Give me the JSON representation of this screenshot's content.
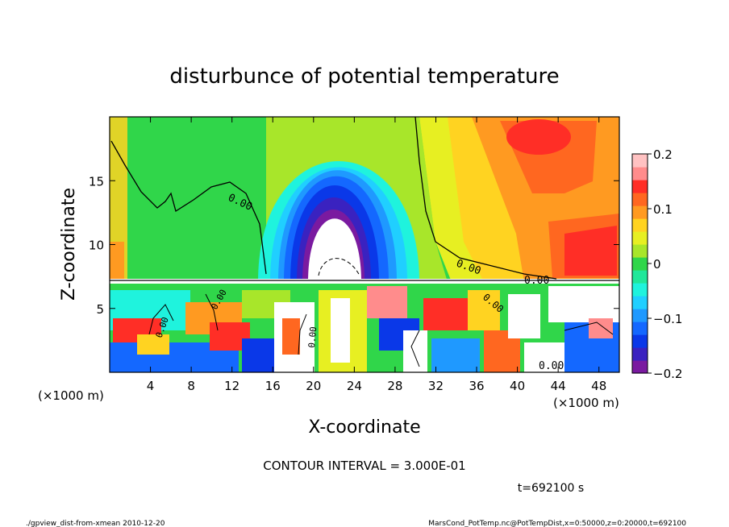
{
  "chart_data": {
    "type": "heatmap",
    "title": "disturbunce of potential temperature",
    "xlabel": "X-coordinate",
    "ylabel": "Z-coordinate",
    "x_unit": "(×1000 m)",
    "y_unit": "(×1000 m)",
    "xlim": [
      0,
      50
    ],
    "ylim": [
      0,
      20
    ],
    "x_ticks": [
      4,
      8,
      12,
      16,
      20,
      24,
      28,
      32,
      36,
      40,
      44,
      48
    ],
    "y_ticks": [
      5,
      10,
      15
    ],
    "colorbar": {
      "range": [
        -0.2,
        0.2
      ],
      "tick_values": [
        0.2,
        0.1,
        0,
        -0.1,
        -0.2
      ],
      "tick_labels": [
        "0.2",
        "0.1",
        "0",
        "−0.1",
        "−0.2"
      ]
    },
    "contour_interval_text": "CONTOUR INTERVAL = 3.000E-01",
    "contour_labels": [
      "0.00",
      "0.00",
      "0.00",
      "0.00",
      "0.00",
      "0.00",
      "0.00",
      "0.00"
    ],
    "time_text": "t=692100 s",
    "grid": false
  },
  "footer": {
    "left": "./gpview_dist-from-xmean  2010-12-20",
    "right": "MarsCond_PotTemp.nc@PotTempDist,x=0:50000,z=0:20000,t=692100"
  },
  "colors": {
    "palette": [
      "#7a1aa0",
      "#3a22c0",
      "#0a38e8",
      "#1468ff",
      "#1f99ff",
      "#20cfff",
      "#1ff3dd",
      "#20e79a",
      "#30d64a",
      "#a8e62a",
      "#e7ef22",
      "#ffd321",
      "#ff9a21",
      "#ff6720",
      "#ff2e26",
      "#ff8c8c",
      "#ffc2c2"
    ]
  }
}
